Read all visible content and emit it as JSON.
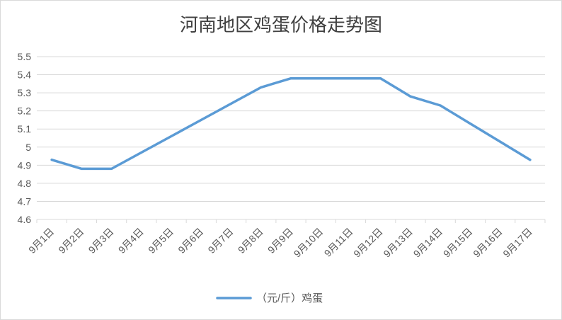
{
  "chart_data": {
    "type": "line",
    "title": "河南地区鸡蛋价格走势图",
    "xlabel": "",
    "ylabel": "",
    "categories": [
      "9月1日",
      "9月2日",
      "9月3日",
      "9月4日",
      "9月5日",
      "9月6日",
      "9月7日",
      "9月8日",
      "9月9日",
      "9月10日",
      "9月11日",
      "9月12日",
      "9月13日",
      "9月14日",
      "9月15日",
      "9月16日",
      "9月17日"
    ],
    "series": [
      {
        "name": "（元/斤）鸡蛋",
        "color": "#5b9bd5",
        "values": [
          4.93,
          4.88,
          4.88,
          4.97,
          5.06,
          5.15,
          5.24,
          5.33,
          5.38,
          5.38,
          5.38,
          5.38,
          5.28,
          5.23,
          5.13,
          5.03,
          4.93
        ]
      }
    ],
    "ylim": [
      4.6,
      5.5
    ],
    "yticks": [
      "4.6",
      "4.7",
      "4.8",
      "4.9",
      "5",
      "5.1",
      "5.2",
      "5.3",
      "5.4",
      "5.5"
    ],
    "grid": true,
    "legend_position": "bottom"
  }
}
